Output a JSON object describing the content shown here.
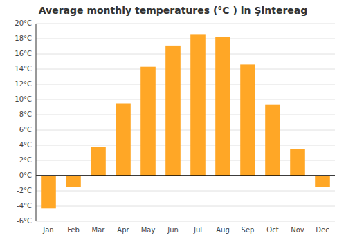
{
  "chart_data": {
    "type": "bar",
    "title": "Average monthly temperatures (°C ) in Şintereag",
    "categories": [
      "Jan",
      "Feb",
      "Mar",
      "Apr",
      "May",
      "Jun",
      "Jul",
      "Aug",
      "Sep",
      "Oct",
      "Nov",
      "Dec"
    ],
    "values": [
      -4.3,
      -1.5,
      3.8,
      9.5,
      14.3,
      17.1,
      18.6,
      18.2,
      14.6,
      9.3,
      3.5,
      -1.5
    ],
    "color": "#FFA726",
    "ylim": [
      -6,
      20
    ],
    "yticks": [
      {
        "value": -6,
        "label": "-6°C"
      },
      {
        "value": -4,
        "label": "-4°C"
      },
      {
        "value": -2,
        "label": "-2°C"
      },
      {
        "value": 0,
        "label": "0°C"
      },
      {
        "value": 2,
        "label": "2°C"
      },
      {
        "value": 4,
        "label": "4°C"
      },
      {
        "value": 6,
        "label": "6°C"
      },
      {
        "value": 8,
        "label": "8°C"
      },
      {
        "value": 10,
        "label": "10°C"
      },
      {
        "value": 12,
        "label": "12°C"
      },
      {
        "value": 14,
        "label": "14°C"
      },
      {
        "value": 16,
        "label": "16°C"
      },
      {
        "value": 18,
        "label": "18°C"
      },
      {
        "value": 20,
        "label": "20°C"
      }
    ],
    "grid": true
  }
}
